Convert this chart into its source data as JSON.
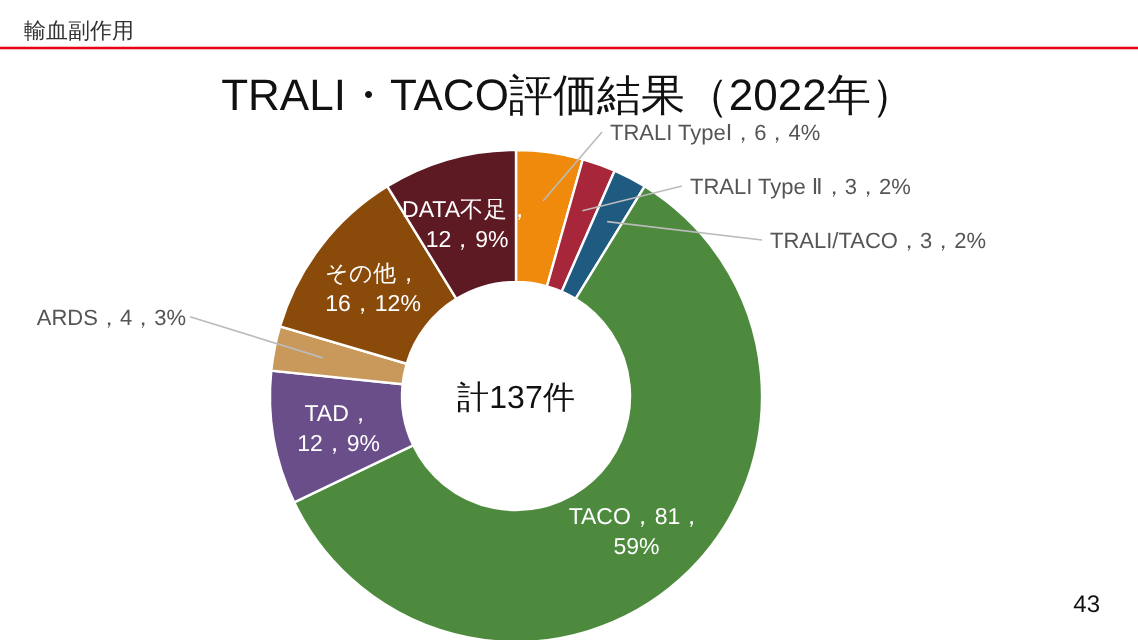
{
  "chart_data": {
    "type": "donut",
    "title": "TRALI・TACO評価結果（2022年）",
    "subtitle": "輸血副作用",
    "categories": [
      "TRALI TypeⅠ",
      "TRALI Type Ⅱ",
      "TRALI/TACO",
      "TACO",
      "TAD",
      "ARDS",
      "その他",
      "DATA不足"
    ],
    "values": [
      6,
      3,
      3,
      81,
      12,
      4,
      16,
      12
    ],
    "value_labels": [
      "，6，4%",
      "，3，2%",
      "，3，2%",
      "，81，59%",
      "，12，9%",
      "，4，3%",
      "，16，12%",
      "，12，9%"
    ],
    "colors": [
      "#f08a0c",
      "#a8263a",
      "#1f5a80",
      "#4d8a3e",
      "#6a4e8a",
      "#c8995a",
      "#8a4a0a",
      "#5e1a22"
    ],
    "annotations": [
      "計137件",
      "43"
    ]
  }
}
